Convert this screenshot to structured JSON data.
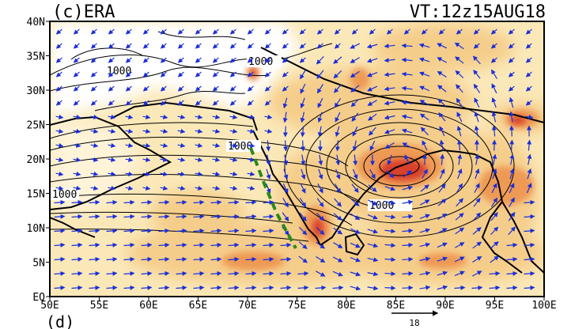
{
  "header": {
    "panel_label": "(c)ERA",
    "valid_time": "VT:12z15AUG18"
  },
  "axes": {
    "lat_ticks": [
      "40N",
      "35N",
      "30N",
      "25N",
      "20N",
      "15N",
      "10N",
      "5N",
      "EQ"
    ],
    "lon_ticks": [
      "50E",
      "55E",
      "60E",
      "65E",
      "70E",
      "75E",
      "80E",
      "85E",
      "90E",
      "95E",
      "100E"
    ],
    "lat_range": [
      0,
      40
    ],
    "lon_range": [
      50,
      100
    ]
  },
  "contour_labels": [
    "1000",
    "1000",
    "1000",
    "1000",
    "1000"
  ],
  "reference_vector": {
    "value": "18"
  },
  "footer_fragment": "(d)",
  "colors": {
    "background_field": "#fbe8b8",
    "low_shade": "#f5cd8a",
    "mid_shade": "#ee9a55",
    "high_shade": "#d8402a",
    "wind_vectors": "#1a2ed8",
    "contours": "#000000",
    "trough_line": "#2a8a1c"
  }
}
